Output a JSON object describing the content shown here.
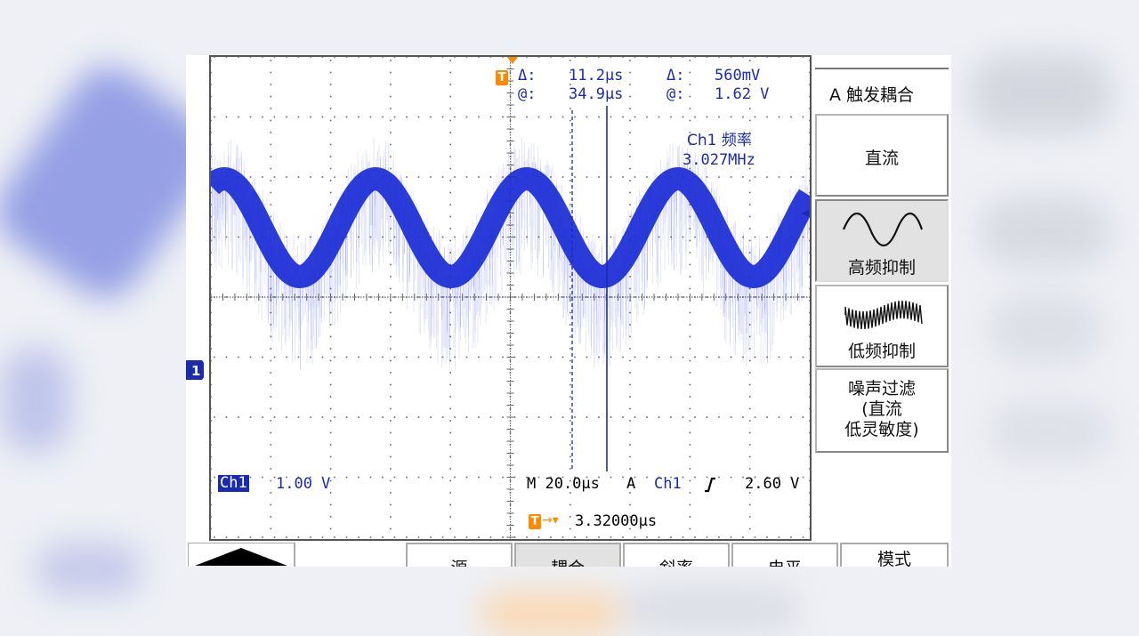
{
  "cursor_readout": {
    "time_delta_label": "Δ:",
    "time_delta": "11.2µs",
    "time_at_label": "@:",
    "time_at": "34.9µs",
    "volt_delta_label": "Δ:",
    "volt_delta": "560mV",
    "volt_at_label": "@:",
    "volt_at": "1.62 V",
    "trigger_icon": "T"
  },
  "measurement": {
    "label": "Ch1 频率",
    "value": "3.027MHz"
  },
  "channel": {
    "name": "Ch1",
    "scale": "1.00 V",
    "marker": "1"
  },
  "timebase": {
    "text": "M 20.0µs",
    "trigger_mode": "A",
    "trigger_source": "Ch1",
    "trigger_level": "2.60 V",
    "trigger_position": "3.32000µs",
    "trigger_position_icon": "T→"
  },
  "side_menu": {
    "title": "A 触发耦合",
    "items": [
      {
        "label": "直流"
      },
      {
        "label": "高频抑制",
        "icon": "sine-wave-icon",
        "selected": true
      },
      {
        "label": "低频抑制",
        "icon": "noisy-wave-icon"
      },
      {
        "label": "噪声过滤\n(直流\n低灵敏度)"
      }
    ]
  },
  "bottom_menu": {
    "items": [
      {
        "label": "源"
      },
      {
        "label": "耦合",
        "selected": true
      },
      {
        "label": "斜率"
      },
      {
        "label": "电平"
      },
      {
        "label": "模式"
      }
    ]
  },
  "colors": {
    "trace": "#1a2bd6",
    "accent": "#ff8a00",
    "grid": "#666666"
  }
}
